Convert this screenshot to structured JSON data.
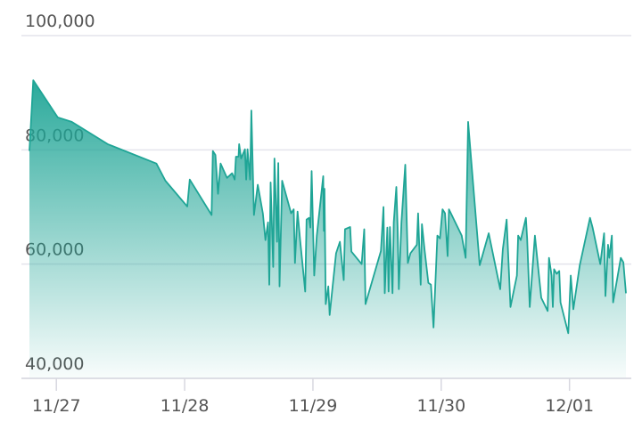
{
  "chart_data": {
    "type": "area",
    "color": "#1fa596",
    "grid": true,
    "ylim": [
      40000,
      100000
    ],
    "yticks": [
      {
        "value": 40000,
        "label": "40,000"
      },
      {
        "value": 60000,
        "label": "60,000"
      },
      {
        "value": 80000,
        "label": "80,000"
      },
      {
        "value": 100000,
        "label": "100,000"
      }
    ],
    "xlim": [
      -0.21,
      4.44
    ],
    "xticks": [
      {
        "value": 0,
        "label": "11/27"
      },
      {
        "value": 1,
        "label": "11/28"
      },
      {
        "value": 2,
        "label": "11/29"
      },
      {
        "value": 3,
        "label": "11/30"
      },
      {
        "value": 4,
        "label": "12/01"
      }
    ],
    "x": [
      -0.21,
      -0.18,
      0.01,
      0.12,
      0.4,
      0.78,
      0.85,
      1.02,
      1.04,
      1.21,
      1.22,
      1.24,
      1.26,
      1.28,
      1.33,
      1.37,
      1.39,
      1.4,
      1.42,
      1.425,
      1.44,
      1.47,
      1.48,
      1.49,
      1.51,
      1.52,
      1.54,
      1.57,
      1.61,
      1.63,
      1.65,
      1.66,
      1.67,
      1.69,
      1.7,
      1.72,
      1.73,
      1.74,
      1.76,
      1.83,
      1.85,
      1.86,
      1.88,
      1.9,
      1.94,
      1.95,
      1.97,
      1.98,
      1.99,
      2.01,
      2.03,
      2.08,
      2.085,
      2.09,
      2.1,
      2.12,
      2.13,
      2.18,
      2.21,
      2.24,
      2.25,
      2.29,
      2.3,
      2.38,
      2.4,
      2.41,
      2.53,
      2.55,
      2.56,
      2.58,
      2.59,
      2.6,
      2.62,
      2.63,
      2.65,
      2.66,
      2.67,
      2.69,
      2.72,
      2.74,
      2.76,
      2.81,
      2.82,
      2.84,
      2.85,
      2.87,
      2.9,
      2.92,
      2.94,
      2.97,
      2.99,
      3.01,
      3.03,
      3.05,
      3.06,
      3.16,
      3.19,
      3.21,
      3.3,
      3.37,
      3.46,
      3.48,
      3.51,
      3.54,
      3.59,
      3.6,
      3.62,
      3.66,
      3.67,
      3.69,
      3.73,
      3.78,
      3.83,
      3.84,
      3.86,
      3.87,
      3.88,
      3.9,
      3.92,
      3.93,
      3.99,
      4.01,
      4.03,
      4.08,
      4.16,
      4.18,
      4.24,
      4.27,
      4.28,
      4.3,
      4.31,
      4.33,
      4.34,
      4.4,
      4.42,
      4.44
    ],
    "values": [
      79800,
      92200,
      85700,
      84900,
      81000,
      77600,
      74600,
      70100,
      74800,
      68600,
      79800,
      79100,
      72300,
      77600,
      75100,
      75900,
      74800,
      78800,
      78800,
      81000,
      78500,
      80100,
      74800,
      80100,
      74800,
      86900,
      68600,
      73900,
      68900,
      64200,
      67300,
      56400,
      74300,
      59500,
      78500,
      63900,
      77700,
      56100,
      74600,
      68900,
      69600,
      60200,
      69200,
      64200,
      55200,
      67800,
      68100,
      66400,
      76300,
      58000,
      65000,
      75400,
      65800,
      73200,
      53000,
      56100,
      51100,
      61900,
      63900,
      57200,
      66100,
      66500,
      62200,
      60000,
      66100,
      53000,
      62300,
      70000,
      54900,
      66400,
      55200,
      66500,
      54900,
      67300,
      73500,
      66500,
      55600,
      67300,
      77400,
      60200,
      61900,
      63400,
      68900,
      56400,
      67000,
      62600,
      56700,
      56400,
      48900,
      65000,
      64500,
      69600,
      68900,
      61400,
      69600,
      65000,
      61100,
      84900,
      59800,
      65400,
      55600,
      62600,
      67800,
      52500,
      58000,
      65000,
      64200,
      68100,
      64500,
      52500,
      65000,
      54100,
      51800,
      61100,
      58000,
      52500,
      59100,
      58300,
      58800,
      53300,
      47900,
      58000,
      52100,
      59800,
      68100,
      66400,
      60000,
      65400,
      54400,
      63400,
      61100,
      65000,
      53300,
      61100,
      60300,
      54900
    ]
  }
}
